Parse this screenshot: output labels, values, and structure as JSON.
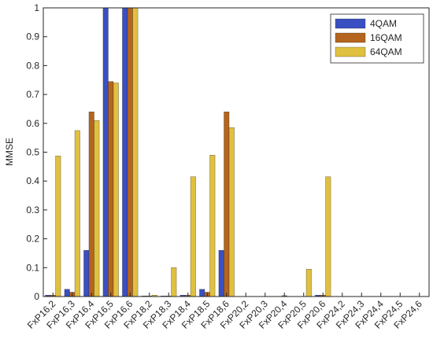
{
  "chart_data": {
    "type": "bar",
    "ylabel": "MMSE",
    "categories": [
      "FxP16,2",
      "FxP16,3",
      "FxP16,4",
      "FxP16,5",
      "FxP16,6",
      "FxP18,2",
      "FxP18,3",
      "FxP18,4",
      "FxP18,5",
      "FxP18,6",
      "FxP20,2",
      "FxP20,3",
      "FxP20,4",
      "FxP20,5",
      "FxP20,6",
      "FxP24,2",
      "FxP24,3",
      "FxP24,4",
      "FxP24,5",
      "FxP24,6"
    ],
    "series": [
      {
        "name": "4QAM",
        "color": "#3a4fc1",
        "values": [
          0.005,
          0.025,
          0.16,
          1,
          1,
          0.002,
          0.002,
          0.005,
          0.025,
          0.16,
          0,
          0,
          0,
          0,
          0.005,
          0,
          0,
          0,
          0,
          0
        ]
      },
      {
        "name": "16QAM",
        "color": "#b5651d",
        "values": [
          0.005,
          0.015,
          0.64,
          0.745,
          1,
          0.002,
          0.002,
          0.005,
          0.015,
          0.64,
          0,
          0,
          0.003,
          0,
          0.005,
          0,
          0,
          0,
          0,
          0
        ]
      },
      {
        "name": "64QAM",
        "color": "#e0c040",
        "values": [
          0.487,
          0.575,
          0.61,
          0.74,
          1,
          0.005,
          0.1,
          0.415,
          0.49,
          0.585,
          0,
          0,
          0,
          0.095,
          0.415,
          0,
          0,
          0,
          0,
          0
        ]
      }
    ],
    "ylim": [
      0,
      1
    ],
    "yticks": [
      0,
      0.1,
      0.2,
      0.3,
      0.4,
      0.5,
      0.6,
      0.7,
      0.8,
      0.9,
      1
    ],
    "legend": "upper right"
  }
}
